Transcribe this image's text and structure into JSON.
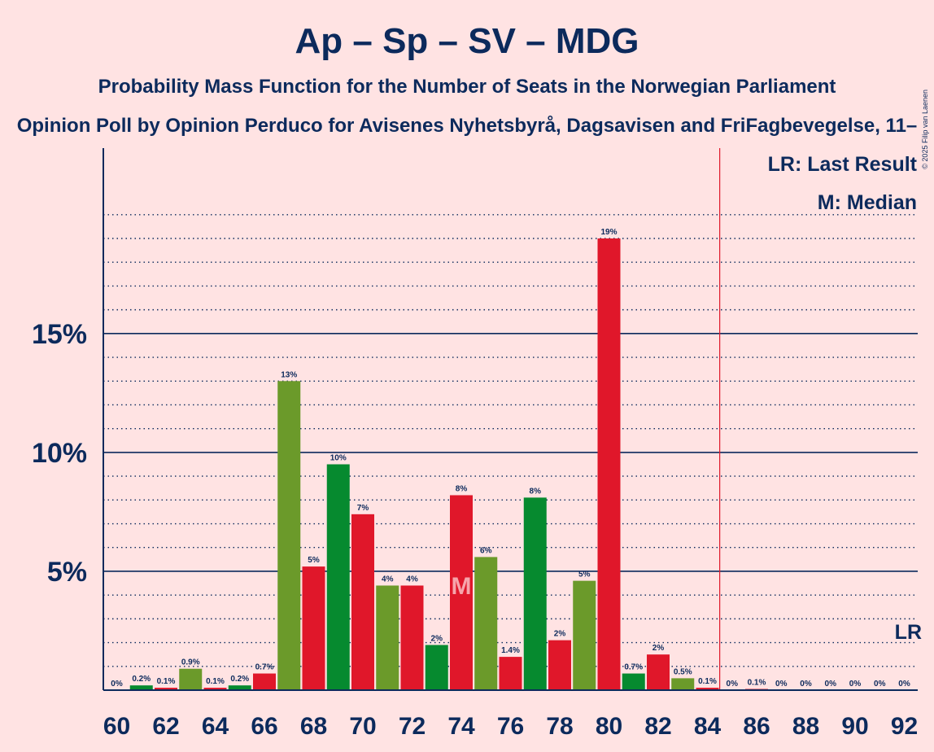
{
  "chart_data": {
    "type": "bar",
    "title": "Ap – Sp – SV – MDG",
    "subtitle": "Probability Mass Function for the Number of Seats in the Norwegian Parliament",
    "source_line": "Opinion Poll by Opinion Perduco for Avisenes Nyhetsbyrå, Dagsavisen and FriFagbevegelse, 11–",
    "copyright": "© 2025 Filip van Laenen",
    "legend": {
      "last_result": "LR: Last Result",
      "median": "M: Median"
    },
    "median_marker": "M",
    "last_result_marker": "LR",
    "last_result_seat": 85,
    "median_seat": 74,
    "ylim": [
      0,
      22.8
    ],
    "yticks": [
      {
        "value": 5,
        "label": "5%"
      },
      {
        "value": 10,
        "label": "10%"
      },
      {
        "value": 15,
        "label": "15%"
      }
    ],
    "xticks": [
      "60",
      "62",
      "64",
      "66",
      "68",
      "70",
      "72",
      "74",
      "76",
      "78",
      "80",
      "82",
      "84",
      "86",
      "88",
      "90",
      "92"
    ],
    "colors": {
      "red": "#E0172A",
      "dark_green": "#068A2F",
      "olive": "#6B9A2A",
      "navy": "#0C2A5C",
      "background": "#FFE3E3",
      "lr_line": "#E0172A"
    },
    "bars": [
      {
        "seat": 60,
        "value": 0.0,
        "label": "0%",
        "color": "red"
      },
      {
        "seat": 61,
        "value": 0.2,
        "label": "0.2%",
        "color": "dark_green"
      },
      {
        "seat": 62,
        "value": 0.1,
        "label": "0.1%",
        "color": "red"
      },
      {
        "seat": 63,
        "value": 0.9,
        "label": "0.9%",
        "color": "olive"
      },
      {
        "seat": 64,
        "value": 0.1,
        "label": "0.1%",
        "color": "red"
      },
      {
        "seat": 65,
        "value": 0.2,
        "label": "0.2%",
        "color": "dark_green"
      },
      {
        "seat": 66,
        "value": 0.7,
        "label": "0.7%",
        "color": "red"
      },
      {
        "seat": 67,
        "value": 13.0,
        "label": "13%",
        "color": "olive"
      },
      {
        "seat": 68,
        "value": 5.2,
        "label": "5%",
        "color": "red"
      },
      {
        "seat": 69,
        "value": 9.5,
        "label": "10%",
        "color": "dark_green"
      },
      {
        "seat": 70,
        "value": 7.4,
        "label": "7%",
        "color": "red"
      },
      {
        "seat": 71,
        "value": 4.4,
        "label": "4%",
        "color": "olive"
      },
      {
        "seat": 72,
        "value": 4.4,
        "label": "4%",
        "color": "red"
      },
      {
        "seat": 73,
        "value": 1.9,
        "label": "2%",
        "color": "dark_green"
      },
      {
        "seat": 74,
        "value": 8.2,
        "label": "8%",
        "color": "red"
      },
      {
        "seat": 75,
        "value": 5.6,
        "label": "6%",
        "color": "olive"
      },
      {
        "seat": 76,
        "value": 1.4,
        "label": "1.4%",
        "color": "red"
      },
      {
        "seat": 77,
        "value": 8.1,
        "label": "8%",
        "color": "dark_green"
      },
      {
        "seat": 78,
        "value": 2.1,
        "label": "2%",
        "color": "red"
      },
      {
        "seat": 79,
        "value": 4.6,
        "label": "5%",
        "color": "olive"
      },
      {
        "seat": 80,
        "value": 19.0,
        "label": "19%",
        "color": "red"
      },
      {
        "seat": 81,
        "value": 0.7,
        "label": "0.7%",
        "color": "dark_green"
      },
      {
        "seat": 82,
        "value": 1.5,
        "label": "2%",
        "color": "red"
      },
      {
        "seat": 83,
        "value": 0.5,
        "label": "0.5%",
        "color": "olive"
      },
      {
        "seat": 84,
        "value": 0.1,
        "label": "0.1%",
        "color": "red"
      },
      {
        "seat": 85,
        "value": 0.0,
        "label": "0%",
        "color": "dark_green"
      },
      {
        "seat": 86,
        "value": 0.05,
        "label": "0.1%",
        "color": "red"
      },
      {
        "seat": 87,
        "value": 0.0,
        "label": "0%",
        "color": "olive"
      },
      {
        "seat": 88,
        "value": 0.0,
        "label": "0%",
        "color": "red"
      },
      {
        "seat": 89,
        "value": 0.0,
        "label": "0%",
        "color": "dark_green"
      },
      {
        "seat": 90,
        "value": 0.0,
        "label": "0%",
        "color": "red"
      },
      {
        "seat": 91,
        "value": 0.0,
        "label": "0%",
        "color": "olive"
      },
      {
        "seat": 92,
        "value": 0.0,
        "label": "0%",
        "color": "red"
      }
    ]
  }
}
